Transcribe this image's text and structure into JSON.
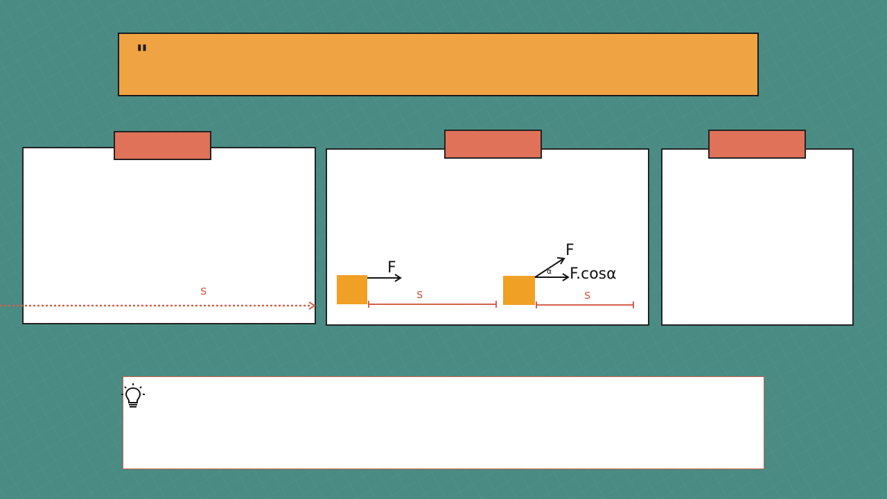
{
  "header": {
    "quote_mark": "\""
  },
  "cards": [
    {
      "tape_color": "#e07259",
      "s_label": "s"
    },
    {
      "tape_color": "#e07259",
      "diagram1": {
        "force_label": "F",
        "s_label": "s"
      },
      "diagram2": {
        "force_label": "F",
        "angle_label": "α",
        "component_label": "F.cosα",
        "s_label": "s"
      }
    },
    {
      "tape_color": "#e07259"
    }
  ],
  "tip": {
    "icon": "lightbulb-icon"
  },
  "colors": {
    "background": "#4a8b83",
    "header": "#f0a342",
    "tape": "#e07259",
    "block": "#f0a025",
    "s_line": "#d0614a"
  }
}
